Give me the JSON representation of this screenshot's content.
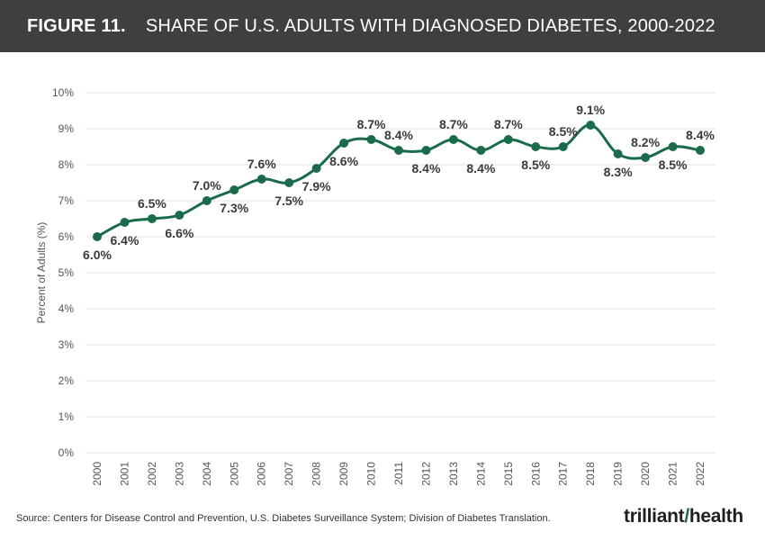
{
  "header": {
    "figure_number": "FIGURE 11.",
    "title": "SHARE OF U.S. ADULTS WITH DIAGNOSED DIABETES, 2000-2022"
  },
  "footer": {
    "source": "Source: Centers for Disease Control and Prevention, U.S. Diabetes Surveillance System; Division of Diabetes Translation.",
    "logo_left": "trilliant",
    "logo_right": "health"
  },
  "colors": {
    "line": "#1a6b4a",
    "header_bg": "#3f3f3f",
    "grid": "#e3e3e3"
  },
  "chart_data": {
    "type": "line",
    "title": "SHARE OF U.S. ADULTS WITH DIAGNOSED DIABETES, 2000-2022",
    "xlabel": "",
    "ylabel": "Percent of Adults (%)",
    "ylim": [
      0,
      10
    ],
    "yticks": [
      "0%",
      "1%",
      "2%",
      "3%",
      "4%",
      "5%",
      "6%",
      "7%",
      "8%",
      "9%",
      "10%"
    ],
    "grid": true,
    "categories": [
      "2000",
      "2001",
      "2002",
      "2003",
      "2004",
      "2005",
      "2006",
      "2007",
      "2008",
      "2009",
      "2010",
      "2011",
      "2012",
      "2013",
      "2014",
      "2015",
      "2016",
      "2017",
      "2018",
      "2019",
      "2020",
      "2021",
      "2022"
    ],
    "values": [
      6.0,
      6.4,
      6.5,
      6.6,
      7.0,
      7.3,
      7.6,
      7.5,
      7.9,
      8.6,
      8.7,
      8.4,
      8.4,
      8.7,
      8.4,
      8.7,
      8.5,
      8.5,
      9.1,
      8.3,
      8.2,
      8.5,
      8.4
    ],
    "data_labels": [
      "6.0%",
      "6.4%",
      "6.5%",
      "6.6%",
      "7.0%",
      "7.3%",
      "7.6%",
      "7.5%",
      "7.9%",
      "8.6%",
      "8.7%",
      "8.4%",
      "8.4%",
      "8.7%",
      "8.4%",
      "8.7%",
      "8.5%",
      "8.5%",
      "9.1%",
      "8.3%",
      "8.2%",
      "8.5%",
      "8.4%"
    ],
    "label_positions": [
      "below",
      "below",
      "above",
      "below",
      "above",
      "below",
      "above",
      "below",
      "below",
      "below",
      "above",
      "above",
      "below",
      "above",
      "below",
      "above",
      "below",
      "above",
      "above",
      "below",
      "above",
      "below",
      "above"
    ]
  }
}
